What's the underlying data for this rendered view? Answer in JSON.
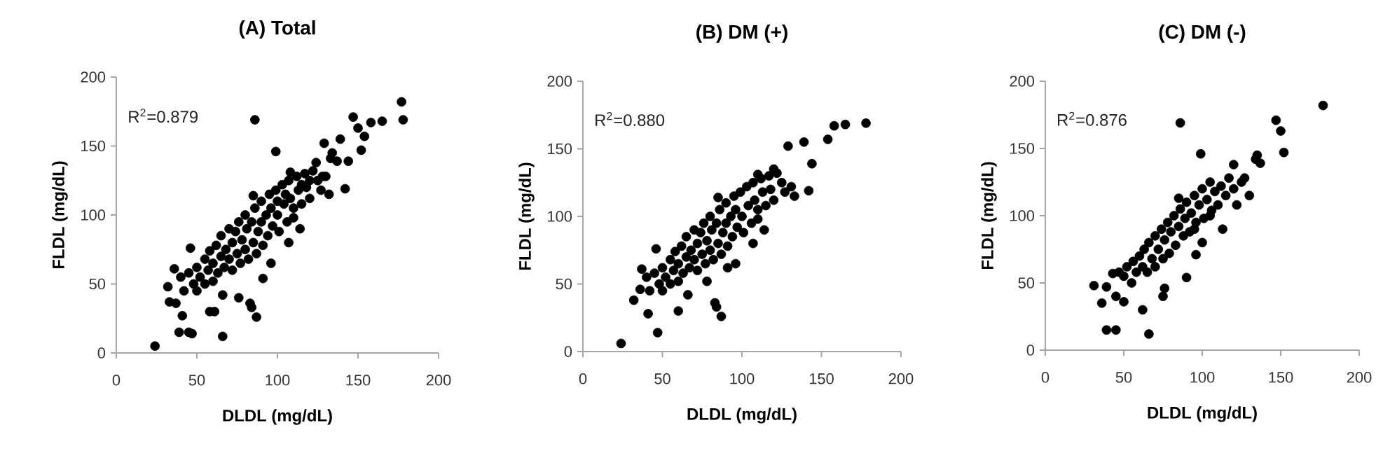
{
  "chart_data": [
    {
      "type": "scatter",
      "title": "(A) Total",
      "xlabel": "DLDL (mg/dL)",
      "ylabel": "FLDL (mg/dL)",
      "annotations": [
        "R$^{2}$=0.879"
      ],
      "xlim": [
        0,
        200
      ],
      "ylim": [
        0,
        200
      ],
      "xticks": [
        0,
        50,
        100,
        150,
        200
      ],
      "yticks": [
        0,
        50,
        100,
        150,
        200
      ],
      "marker": "circle",
      "grid": false,
      "series": [
        {
          "color": "#000000",
          "x": [
            24,
            39,
            45,
            47,
            66,
            41,
            32,
            33,
            37,
            36,
            46,
            86,
            99,
            83,
            84,
            87,
            91,
            76,
            66,
            58,
            61,
            129,
            139,
            134,
            133,
            137,
            144,
            142,
            147,
            150,
            154,
            152,
            158,
            165,
            177,
            178,
            132,
            96,
            85,
            107,
            114,
            110,
            124,
            108,
            128,
            40,
            42,
            45,
            48,
            50,
            50,
            52,
            55,
            55,
            57,
            58,
            60,
            60,
            62,
            63,
            65,
            65,
            67,
            68,
            70,
            70,
            72,
            72,
            74,
            75,
            76,
            77,
            78,
            80,
            80,
            81,
            82,
            84,
            85,
            86,
            87,
            88,
            90,
            90,
            91,
            93,
            94,
            95,
            96,
            97,
            99,
            100,
            101,
            103,
            104,
            106,
            107,
            108,
            110,
            112,
            113,
            115,
            117,
            118,
            120,
            122,
            125,
            127,
            120,
            130,
            115,
            105,
            100
          ],
          "values": [
            5,
            15,
            15,
            14,
            12,
            27,
            48,
            37,
            36,
            61,
            76,
            169,
            146,
            36,
            33,
            26,
            54,
            40,
            42,
            30,
            30,
            152,
            155,
            145,
            141,
            139,
            139,
            119,
            171,
            163,
            157,
            147,
            167,
            168,
            182,
            169,
            115,
            65,
            114,
            80,
            90,
            98,
            138,
            131,
            128,
            55,
            45,
            58,
            50,
            62,
            45,
            55,
            68,
            50,
            60,
            74,
            52,
            65,
            78,
            58,
            70,
            85,
            62,
            75,
            90,
            68,
            80,
            60,
            88,
            72,
            95,
            65,
            82,
            100,
            75,
            90,
            68,
            95,
            80,
            105,
            72,
            88,
            110,
            95,
            78,
            100,
            85,
            115,
            105,
            92,
            118,
            100,
            88,
            122,
            108,
            95,
            125,
            112,
            105,
            128,
            118,
            108,
            130,
            120,
            112,
            132,
            125,
            118,
            125,
            128,
            122,
            115,
            110
          ]
        }
      ]
    },
    {
      "type": "scatter",
      "title": "(B) DM (+)",
      "xlabel": "DLDL (mg/dL)",
      "ylabel": "FLDL (mg/dL)",
      "annotations": [
        "R$^{2}$=0.880"
      ],
      "xlim": [
        0,
        200
      ],
      "ylim": [
        0,
        200
      ],
      "xticks": [
        0,
        50,
        100,
        150,
        200
      ],
      "yticks": [
        0,
        50,
        100,
        150,
        200
      ],
      "marker": "circle",
      "grid": false,
      "series": [
        {
          "color": "#000000",
          "x": [
            24,
            47,
            41,
            32,
            36,
            37,
            46,
            83,
            84,
            87,
            66,
            60,
            96,
            85,
            107,
            114,
            110,
            129,
            139,
            144,
            142,
            154,
            158,
            165,
            178,
            133,
            131,
            120,
            110,
            91,
            78,
            40,
            42,
            45,
            48,
            50,
            50,
            52,
            55,
            55,
            57,
            58,
            60,
            60,
            62,
            63,
            65,
            65,
            67,
            68,
            70,
            70,
            72,
            72,
            74,
            75,
            76,
            77,
            78,
            80,
            80,
            81,
            82,
            84,
            85,
            86,
            87,
            88,
            90,
            90,
            91,
            93,
            94,
            95,
            96,
            97,
            99,
            100,
            101,
            103,
            104,
            106,
            107,
            108,
            110,
            112,
            113,
            115,
            117,
            118,
            120,
            122,
            125,
            127
          ],
          "values": [
            6,
            14,
            28,
            38,
            46,
            61,
            76,
            36,
            33,
            26,
            42,
            30,
            65,
            114,
            80,
            90,
            98,
            152,
            155,
            139,
            119,
            157,
            167,
            168,
            169,
            115,
            122,
            135,
            131,
            62,
            52,
            55,
            45,
            58,
            50,
            62,
            45,
            55,
            68,
            50,
            60,
            74,
            52,
            65,
            78,
            58,
            70,
            85,
            62,
            75,
            90,
            68,
            80,
            60,
            88,
            72,
            95,
            65,
            82,
            100,
            75,
            90,
            68,
            95,
            80,
            105,
            72,
            88,
            110,
            95,
            78,
            100,
            85,
            115,
            105,
            92,
            118,
            100,
            88,
            122,
            108,
            95,
            125,
            112,
            105,
            128,
            118,
            108,
            130,
            120,
            112,
            132,
            125,
            118
          ]
        }
      ]
    },
    {
      "type": "scatter",
      "title": "(C) DM (-)",
      "xlabel": "DLDL (mg/dL)",
      "ylabel": "FLDL (mg/dL)",
      "annotations": [
        "R$^{2}$=0.876"
      ],
      "xlim": [
        0,
        200
      ],
      "ylim": [
        0,
        200
      ],
      "xticks": [
        0,
        50,
        100,
        150,
        200
      ],
      "yticks": [
        0,
        50,
        100,
        150,
        200
      ],
      "marker": "circle",
      "grid": false,
      "series": [
        {
          "color": "#000000",
          "x": [
            31,
            36,
            39,
            39,
            45,
            62,
            66,
            75,
            76,
            86,
            99,
            90,
            96,
            50,
            45,
            147,
            150,
            152,
            177,
            135,
            134,
            137,
            120,
            130,
            127,
            122,
            113,
            100,
            85,
            43,
            47,
            50,
            52,
            55,
            56,
            58,
            60,
            62,
            63,
            65,
            66,
            68,
            70,
            70,
            72,
            74,
            75,
            76,
            78,
            79,
            80,
            82,
            83,
            85,
            86,
            88,
            89,
            90,
            92,
            93,
            95,
            96,
            98,
            100,
            101,
            103,
            105,
            106,
            108,
            110,
            112,
            115,
            117,
            120,
            125,
            105,
            95
          ],
          "values": [
            48,
            35,
            47,
            15,
            15,
            30,
            12,
            40,
            46,
            169,
            146,
            54,
            71,
            36,
            40,
            171,
            163,
            147,
            182,
            145,
            142,
            139,
            138,
            115,
            128,
            108,
            90,
            80,
            113,
            57,
            58,
            55,
            62,
            50,
            66,
            58,
            70,
            62,
            75,
            58,
            80,
            68,
            85,
            62,
            75,
            90,
            68,
            82,
            95,
            72,
            88,
            100,
            78,
            92,
            105,
            85,
            98,
            110,
            88,
            102,
            115,
            95,
            108,
            120,
            98,
            112,
            125,
            104,
            118,
            108,
            122,
            115,
            128,
            120,
            125,
            100,
            90
          ]
        }
      ]
    }
  ]
}
